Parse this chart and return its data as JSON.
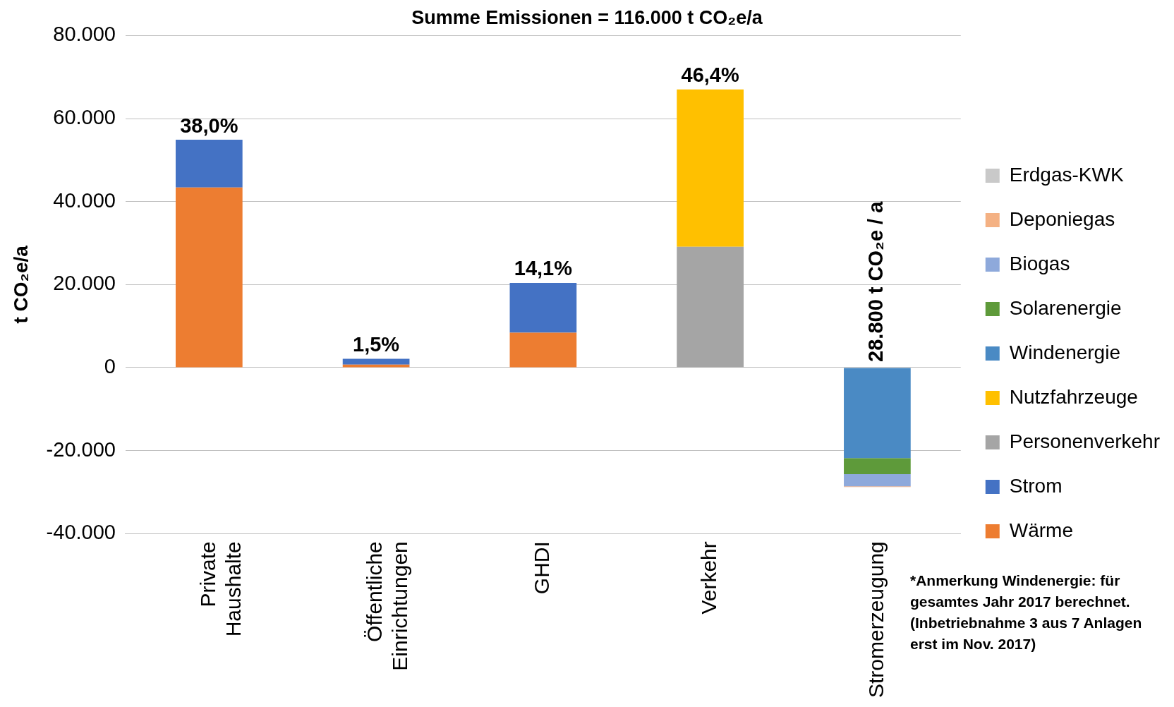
{
  "chart_data": {
    "type": "bar",
    "stacked": true,
    "title": "Summe Emissionen = 116.000 t CO₂e/a",
    "ylabel": "t CO₂e/a",
    "categories": [
      "Private Haushalte",
      "Öffentliche Einrichtungen",
      "GHDI",
      "Verkehr",
      "Stromerzeugung"
    ],
    "series": [
      {
        "name": "Wärme",
        "color": "#ed7d31",
        "values": [
          43400,
          700,
          8400,
          null,
          null
        ]
      },
      {
        "name": "Strom",
        "color": "#4472c4",
        "values": [
          11500,
          1400,
          12000,
          null,
          null
        ]
      },
      {
        "name": "Personenverkehr",
        "color": "#a5a5a5",
        "values": [
          null,
          null,
          null,
          29100,
          null
        ]
      },
      {
        "name": "Nutzfahrzeuge",
        "color": "#ffc000",
        "values": [
          null,
          null,
          null,
          37900,
          null
        ]
      },
      {
        "name": "Windenergie",
        "color": "#4a8ac4",
        "values": [
          null,
          null,
          null,
          null,
          -21800
        ]
      },
      {
        "name": "Solarenergie",
        "color": "#5e9a3a",
        "values": [
          null,
          null,
          null,
          null,
          -3900
        ]
      },
      {
        "name": "Biogas",
        "color": "#8ea9db",
        "values": [
          null,
          null,
          null,
          null,
          -2900
        ]
      },
      {
        "name": "Deponiegas",
        "color": "#f4b183",
        "values": [
          null,
          null,
          null,
          null,
          -200
        ]
      },
      {
        "name": "Erdgas-KWK",
        "color": "#c9c9c9",
        "values": [
          null,
          null,
          null,
          null,
          null
        ]
      }
    ],
    "ylim": [
      -40000,
      80000
    ],
    "yticks": [
      {
        "value": -40000,
        "label": "-40.000"
      },
      {
        "value": -20000,
        "label": "-20.000"
      },
      {
        "value": 0,
        "label": "0"
      },
      {
        "value": 20000,
        "label": "20.000"
      },
      {
        "value": 40000,
        "label": "40.000"
      },
      {
        "value": 60000,
        "label": "60.000"
      },
      {
        "value": 80000,
        "label": "80.000"
      }
    ],
    "grid": "y",
    "legend": "right",
    "annotations": [
      {
        "text": "38,0%",
        "x": "Private Haushalte",
        "y": 54900
      },
      {
        "text": "1,5%",
        "x": "Öffentliche Einrichtungen",
        "y": 2100
      },
      {
        "text": "14,1%",
        "x": "GHDI",
        "y": 20400
      },
      {
        "text": "46,4%",
        "x": "Verkehr",
        "y": 67000
      },
      {
        "text": "28.800 t CO₂e / a",
        "x": "Stromerzeugung",
        "y": 0
      },
      "*Anmerkung Windenergie: für gesamtes Jahr 2017 berechnet. (Inbetriebnahme 3 aus 7 Anlagen erst im Nov. 2017)"
    ]
  }
}
